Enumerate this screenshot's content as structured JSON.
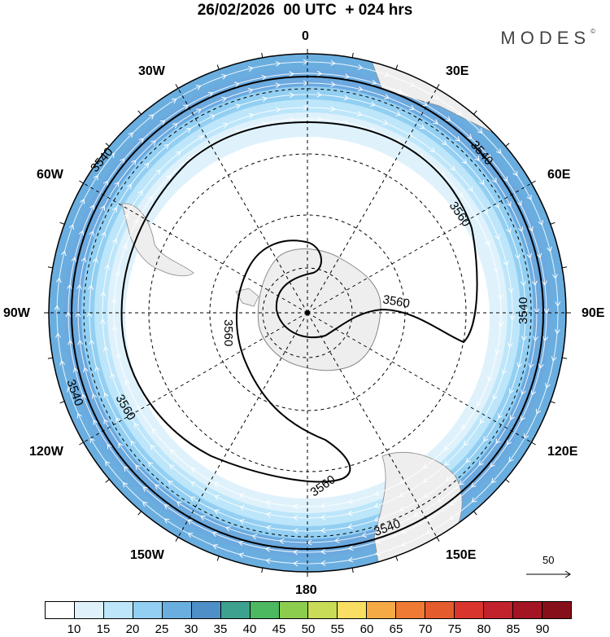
{
  "title": "26/02/2026  00 UTC  + 024 hrs",
  "brand": "MODES",
  "brand_mark": "©",
  "longitude_labels": {
    "north": "0",
    "n_east": "30E",
    "n_west": "30W",
    "e60": "60E",
    "w60": "60W",
    "east": "90E",
    "west": "90W",
    "e120": "120E",
    "w120": "120W",
    "e150": "150E",
    "w150": "150W",
    "south": "180"
  },
  "contours": [
    {
      "label": "3540"
    },
    {
      "label": "3560"
    }
  ],
  "contour_labels": [
    "3540",
    "3540",
    "3540",
    "3540",
    "3540",
    "3560",
    "3560",
    "3560",
    "3560",
    "3560"
  ],
  "wind_vector_reference": "50",
  "legend": {
    "ticks": [
      "10",
      "15",
      "20",
      "25",
      "30",
      "35",
      "40",
      "45",
      "50",
      "55",
      "60",
      "65",
      "70",
      "75",
      "80",
      "85",
      "90"
    ],
    "colors": [
      "#ffffff",
      "#dff2fc",
      "#bde6fa",
      "#92cff2",
      "#6aaee0",
      "#4f8fc7",
      "#3ea08f",
      "#4cb860",
      "#8ccd4e",
      "#c9dc57",
      "#f8df63",
      "#f5aa46",
      "#ef7a33",
      "#e45b2e",
      "#d9352d",
      "#c1222c",
      "#a31523",
      "#861019"
    ]
  },
  "colors": {
    "land": "#eeeeee",
    "coast": "#888888",
    "grid": "#000000"
  }
}
